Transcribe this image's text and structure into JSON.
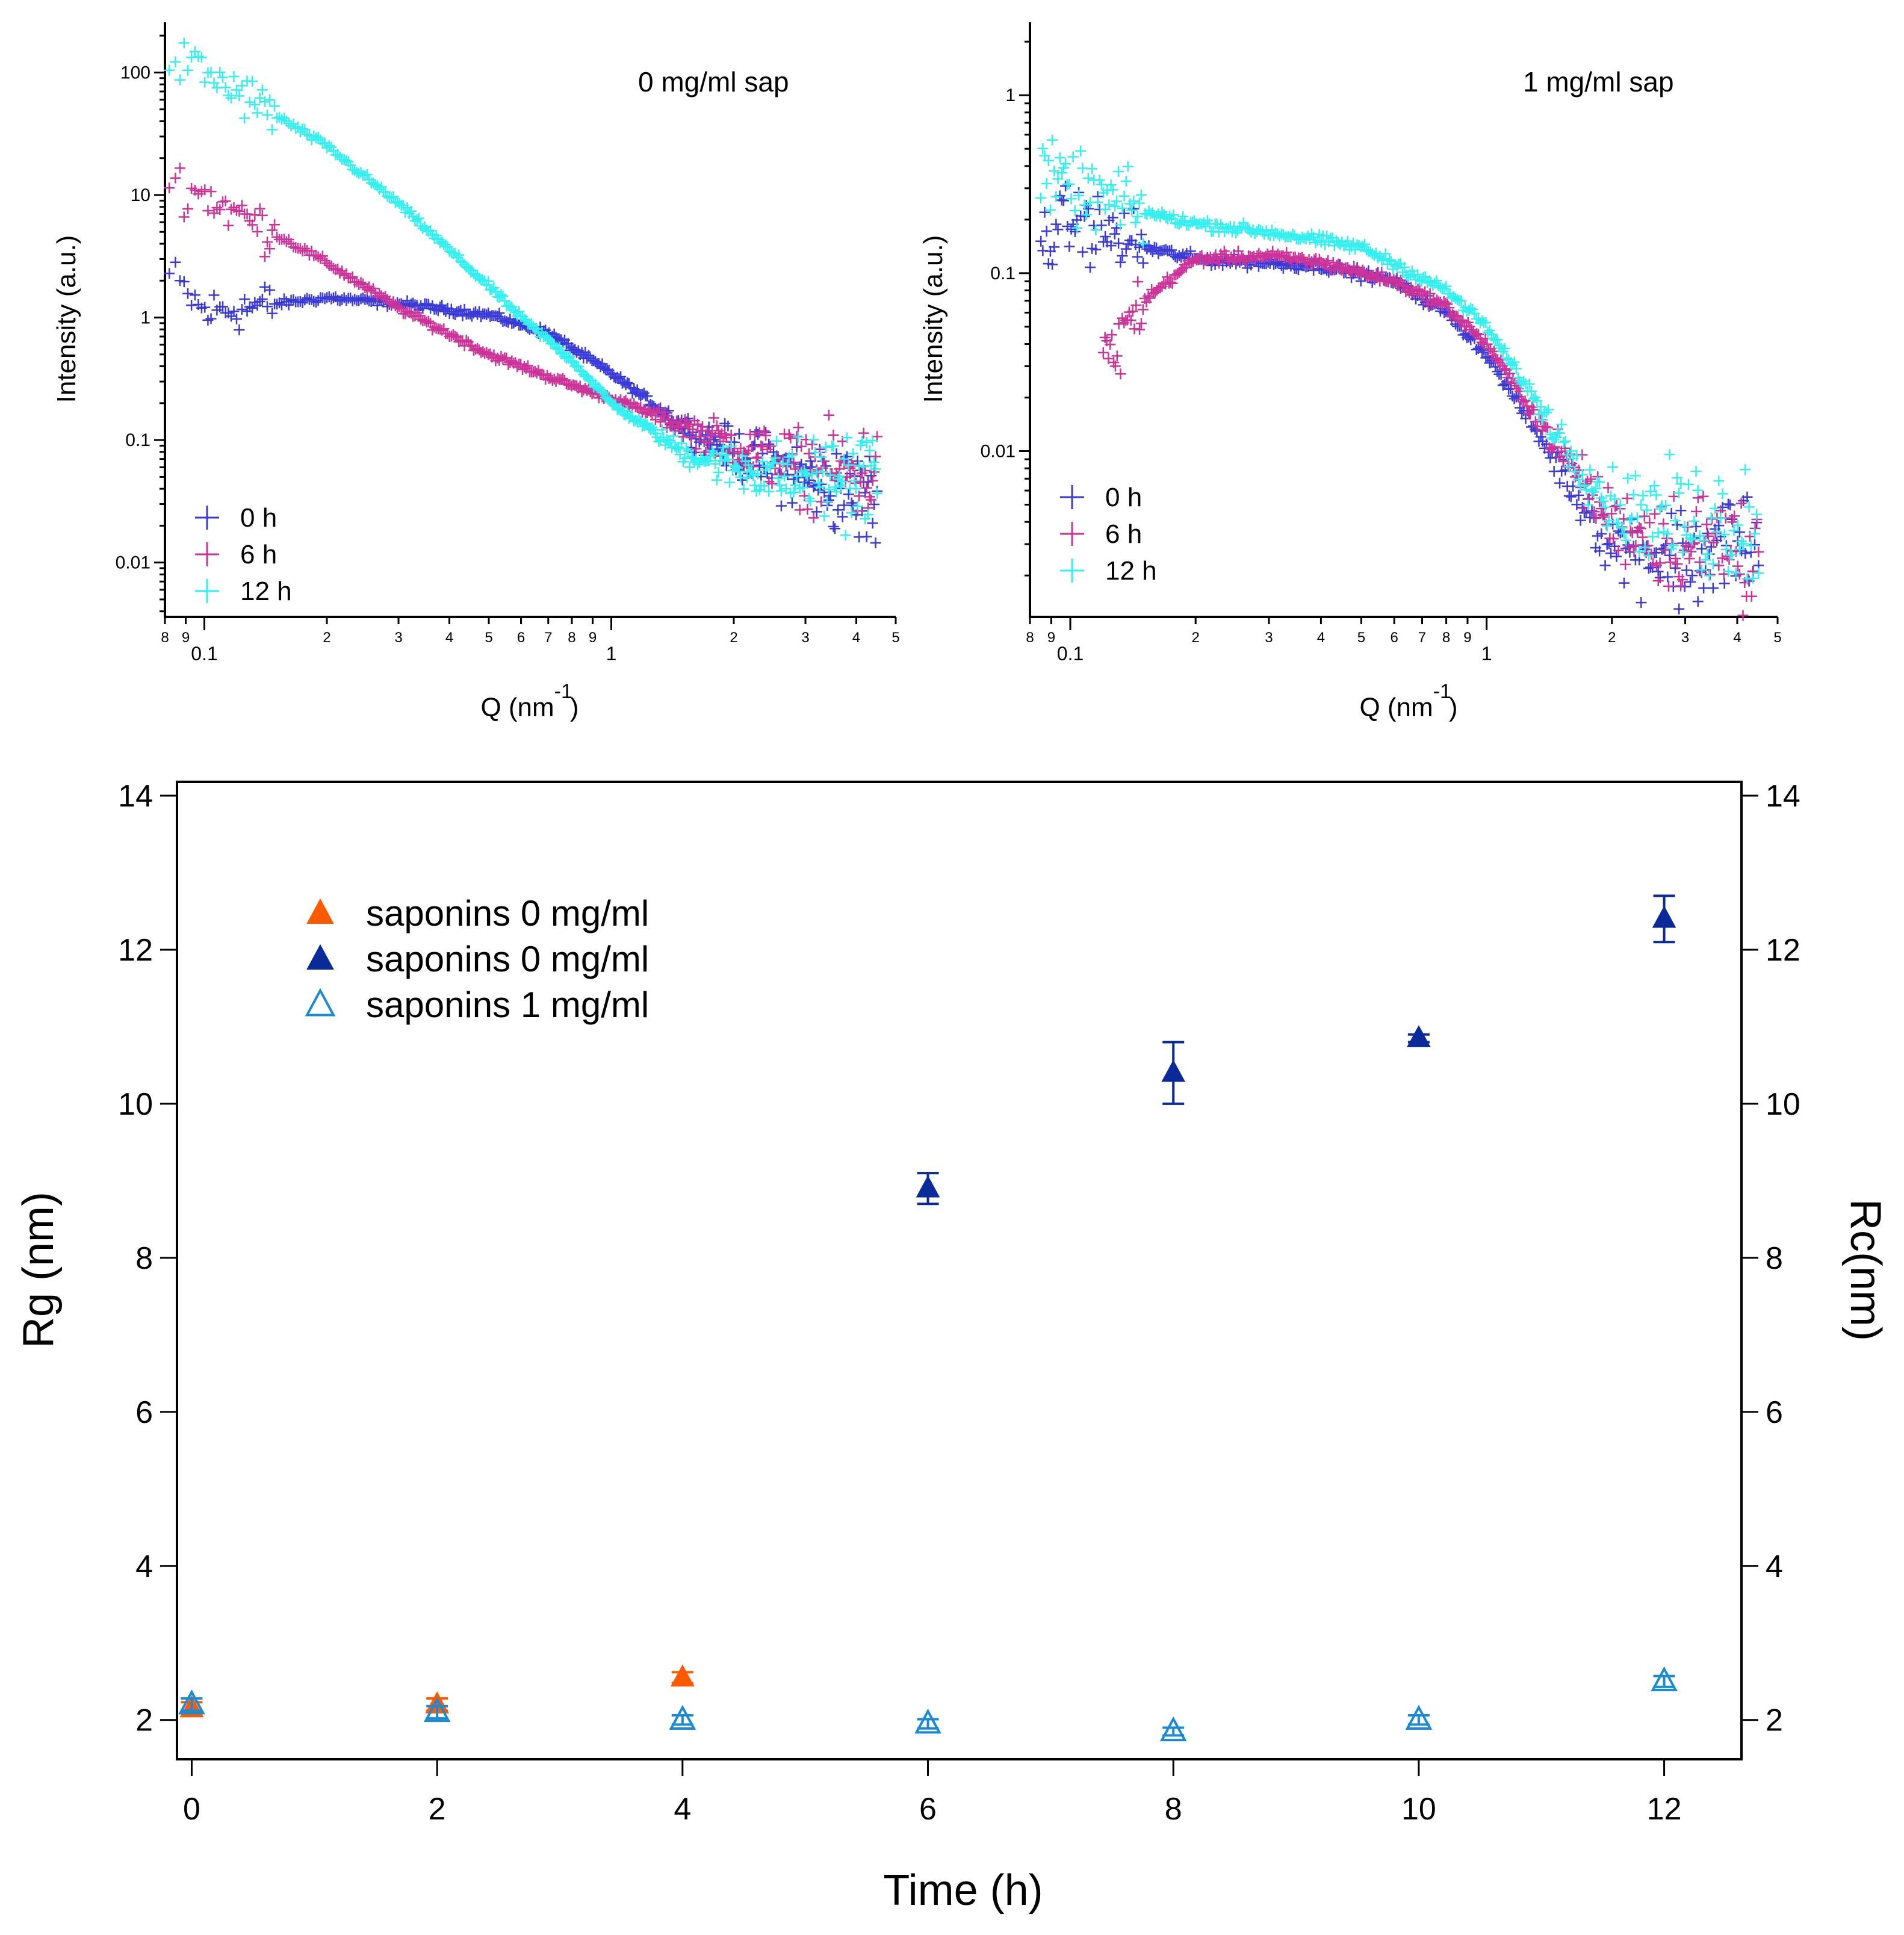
{
  "chart_data": [
    {
      "type": "scatter",
      "title": "0 mg/ml sap",
      "xlabel": "Q (nm",
      "xlabel_sup": "-1",
      "xlabel_close": ")",
      "ylabel": "Intensity (a.u.)",
      "xscale": "log",
      "yscale": "log",
      "xlim": [
        0.08,
        5
      ],
      "ylim": [
        0.0036,
        257
      ],
      "yticks": [
        {
          "v": 100,
          "label": "100"
        },
        {
          "v": 10,
          "label": "10"
        },
        {
          "v": 1,
          "label": "1"
        },
        {
          "v": 0.1,
          "label": "0.1"
        },
        {
          "v": 0.01,
          "label": "0.01"
        }
      ],
      "xticks_major": [
        {
          "v": 0.1,
          "label": "0.1"
        },
        {
          "v": 1,
          "label": "1"
        }
      ],
      "xticks_minor": [
        {
          "v": 0.08,
          "label": "8"
        },
        {
          "v": 0.09,
          "label": "9"
        },
        {
          "v": 0.2,
          "label": "2"
        },
        {
          "v": 0.3,
          "label": "3"
        },
        {
          "v": 0.4,
          "label": "4"
        },
        {
          "v": 0.5,
          "label": "5"
        },
        {
          "v": 0.6,
          "label": "6"
        },
        {
          "v": 0.7,
          "label": "7"
        },
        {
          "v": 0.8,
          "label": "8"
        },
        {
          "v": 0.9,
          "label": "9"
        },
        {
          "v": 2,
          "label": "2"
        },
        {
          "v": 3,
          "label": "3"
        },
        {
          "v": 4,
          "label": "4"
        },
        {
          "v": 5,
          "label": "5"
        }
      ],
      "legend_position": "bottom-left",
      "series": [
        {
          "name": "0 h",
          "color": "#3a3ad8",
          "points": [
            [
              0.082,
              2.2
            ],
            [
              0.1,
              1.1
            ],
            [
              0.2,
              1.45
            ],
            [
              0.3,
              1.3
            ],
            [
              0.5,
              1.05
            ],
            [
              0.7,
              0.75
            ],
            [
              1.0,
              0.35
            ],
            [
              1.5,
              0.13
            ],
            [
              2,
              0.08
            ],
            [
              3,
              0.05
            ],
            [
              4.5,
              0.03
            ]
          ]
        },
        {
          "name": "6 h",
          "color": "#cc3399",
          "points": [
            [
              0.082,
              13
            ],
            [
              0.1,
              10
            ],
            [
              0.2,
              2.8
            ],
            [
              0.3,
              1.2
            ],
            [
              0.5,
              0.5
            ],
            [
              0.8,
              0.28
            ],
            [
              1.0,
              0.22
            ],
            [
              2,
              0.09
            ],
            [
              3,
              0.06
            ],
            [
              4.5,
              0.05
            ]
          ]
        },
        {
          "name": "12 h",
          "color": "#33f0f0",
          "points": [
            [
              0.082,
              130
            ],
            [
              0.1,
              100
            ],
            [
              0.2,
              25
            ],
            [
              0.3,
              8.5
            ],
            [
              0.5,
              1.8
            ],
            [
              0.6,
              1.0
            ],
            [
              0.8,
              0.45
            ],
            [
              1.0,
              0.2
            ],
            [
              1.5,
              0.08
            ],
            [
              2,
              0.06
            ],
            [
              3,
              0.05
            ],
            [
              4.5,
              0.05
            ]
          ]
        }
      ]
    },
    {
      "type": "scatter",
      "title": "1 mg/ml sap",
      "xlabel": "Q (nm",
      "xlabel_sup": "-1",
      "xlabel_close": ")",
      "ylabel": "Intensity (a.u.)",
      "xscale": "log",
      "yscale": "log",
      "xlim": [
        0.08,
        5
      ],
      "ylim": [
        0.00117,
        2.57
      ],
      "yticks": [
        {
          "v": 1,
          "label": "1"
        },
        {
          "v": 0.1,
          "label": "0.1"
        },
        {
          "v": 0.01,
          "label": "0.01"
        }
      ],
      "xticks_major": [
        {
          "v": 0.1,
          "label": "0.1"
        },
        {
          "v": 1,
          "label": "1"
        }
      ],
      "xticks_minor": [
        {
          "v": 0.08,
          "label": "8"
        },
        {
          "v": 0.09,
          "label": "9"
        },
        {
          "v": 0.2,
          "label": "2"
        },
        {
          "v": 0.3,
          "label": "3"
        },
        {
          "v": 0.4,
          "label": "4"
        },
        {
          "v": 0.5,
          "label": "5"
        },
        {
          "v": 0.6,
          "label": "6"
        },
        {
          "v": 0.7,
          "label": "7"
        },
        {
          "v": 0.8,
          "label": "8"
        },
        {
          "v": 0.9,
          "label": "9"
        },
        {
          "v": 2,
          "label": "2"
        },
        {
          "v": 3,
          "label": "3"
        },
        {
          "v": 4,
          "label": "4"
        },
        {
          "v": 5,
          "label": "5"
        }
      ],
      "legend_position": "bottom-left",
      "series": [
        {
          "name": "0 h",
          "color": "#3a3ad8",
          "points": [
            [
              0.085,
              0.15
            ],
            [
              0.1,
              0.2
            ],
            [
              0.15,
              0.14
            ],
            [
              0.2,
              0.12
            ],
            [
              0.4,
              0.11
            ],
            [
              0.6,
              0.09
            ],
            [
              0.8,
              0.06
            ],
            [
              1,
              0.035
            ],
            [
              1.5,
              0.008
            ],
            [
              2,
              0.003
            ],
            [
              3,
              0.0025
            ],
            [
              4.5,
              0.003
            ]
          ]
        },
        {
          "name": "6 h",
          "color": "#cc3399",
          "points": [
            [
              0.12,
              0.03
            ],
            [
              0.15,
              0.07
            ],
            [
              0.2,
              0.12
            ],
            [
              0.3,
              0.125
            ],
            [
              0.4,
              0.115
            ],
            [
              0.6,
              0.09
            ],
            [
              0.8,
              0.065
            ],
            [
              1,
              0.04
            ],
            [
              1.5,
              0.01
            ],
            [
              2,
              0.004
            ],
            [
              3,
              0.003
            ],
            [
              4.5,
              0.003
            ]
          ]
        },
        {
          "name": "12 h",
          "color": "#33f0f0",
          "points": [
            [
              0.085,
              0.35
            ],
            [
              0.1,
              0.3
            ],
            [
              0.15,
              0.22
            ],
            [
              0.2,
              0.19
            ],
            [
              0.3,
              0.17
            ],
            [
              0.5,
              0.14
            ],
            [
              0.8,
              0.08
            ],
            [
              1,
              0.05
            ],
            [
              1.5,
              0.012
            ],
            [
              2,
              0.005
            ],
            [
              3,
              0.004
            ],
            [
              4.5,
              0.004
            ]
          ]
        }
      ]
    },
    {
      "type": "scatter",
      "title": "",
      "xlabel": "Time (h)",
      "ylabel": "Rg (nm)",
      "y2label": "Rc(nm)",
      "xlim": [
        -0.12,
        12.63
      ],
      "ylim": [
        1.49,
        14.18
      ],
      "xticks": [
        0,
        2,
        4,
        6,
        8,
        10,
        12
      ],
      "yticks": [
        2,
        4,
        6,
        8,
        10,
        12,
        14
      ],
      "legend_position": "top-left",
      "series": [
        {
          "name": "saponins 0 mg/ml",
          "color": "#ff5a00",
          "marker": "filled-triangle",
          "x": [
            0,
            2,
            4
          ],
          "y": [
            2.15,
            2.2,
            2.55
          ],
          "err": [
            0.08,
            0.08,
            0.07
          ]
        },
        {
          "name": "saponins 0 mg/ml",
          "color": "#0a2a9a",
          "marker": "filled-triangle",
          "x": [
            6,
            8,
            10,
            12
          ],
          "y": [
            8.9,
            10.4,
            10.85,
            12.4
          ],
          "err": [
            0.2,
            0.4,
            0.05,
            0.3
          ]
        },
        {
          "name": "saponins 1 mg/ml",
          "color": "#1a8ad4",
          "marker": "open-triangle",
          "x": [
            0,
            2,
            4,
            6,
            8,
            10,
            12
          ],
          "y": [
            2.2,
            2.1,
            2.0,
            1.95,
            1.85,
            2.0,
            2.5
          ],
          "err": [
            0.08,
            0.08,
            0.06,
            0.06,
            0.05,
            0.06,
            0.07
          ]
        }
      ]
    }
  ]
}
